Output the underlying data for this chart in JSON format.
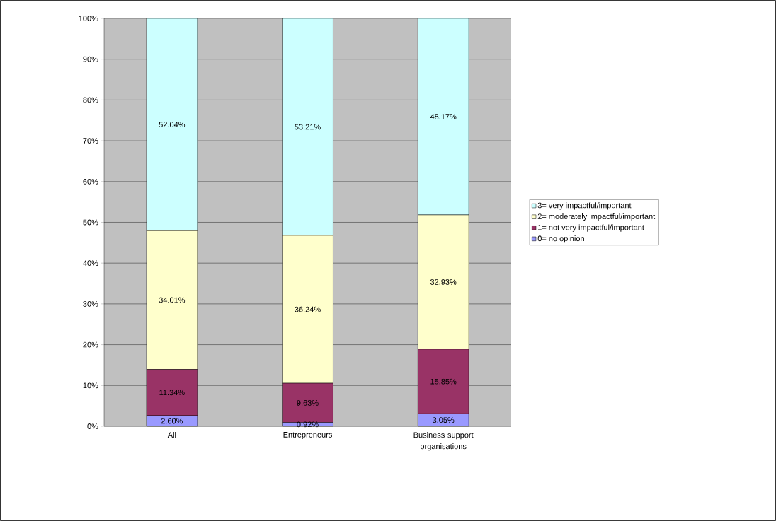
{
  "chart_data": {
    "type": "bar",
    "stacked": true,
    "categories": [
      "All",
      "Entrepreneurs",
      "Business support organisations"
    ],
    "series": [
      {
        "name": "0= no opinion",
        "color": "#9999ff",
        "values": [
          2.6,
          0.92,
          3.05
        ],
        "value_labels": [
          "2.60%",
          "0.92%",
          "3.05%"
        ]
      },
      {
        "name": "1= not very impactful/important",
        "color": "#993366",
        "values": [
          11.34,
          9.63,
          15.85
        ],
        "value_labels": [
          "11.34%",
          "9.63%",
          "15.85%"
        ]
      },
      {
        "name": "2= moderately impactful/important",
        "color": "#ffffcc",
        "values": [
          34.01,
          36.24,
          32.93
        ],
        "value_labels": [
          "34.01%",
          "36.24%",
          "32.93%"
        ]
      },
      {
        "name": "3= very impactful/important",
        "color": "#ccffff",
        "values": [
          52.04,
          53.21,
          48.17
        ],
        "value_labels": [
          "52.04%",
          "53.21%",
          "48.17%"
        ]
      }
    ],
    "ylim": [
      0,
      100
    ],
    "yticks": [
      {
        "value": 0,
        "label": "0%"
      },
      {
        "value": 10,
        "label": "10%"
      },
      {
        "value": 20,
        "label": "20%"
      },
      {
        "value": 30,
        "label": "30%"
      },
      {
        "value": 40,
        "label": "40%"
      },
      {
        "value": 50,
        "label": "50%"
      },
      {
        "value": 60,
        "label": "60%"
      },
      {
        "value": 70,
        "label": "70%"
      },
      {
        "value": 80,
        "label": "80%"
      },
      {
        "value": 90,
        "label": "90%"
      },
      {
        "value": 100,
        "label": "100%"
      }
    ],
    "grid": "y",
    "legend": "right"
  }
}
